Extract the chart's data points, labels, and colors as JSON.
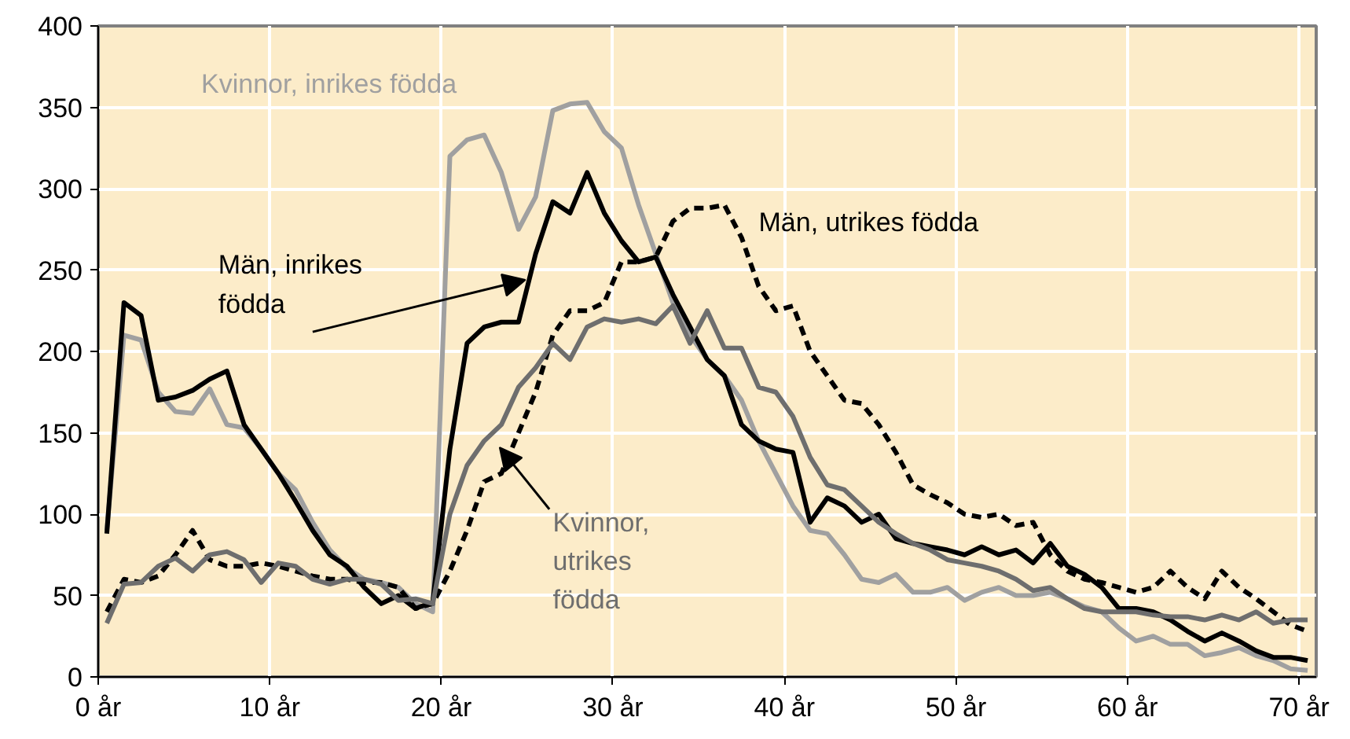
{
  "chart_data": {
    "type": "line",
    "x": [
      0.5,
      1.5,
      2.5,
      3.5,
      4.5,
      5.5,
      6.5,
      7.5,
      8.5,
      9.5,
      10.5,
      11.5,
      12.5,
      13.5,
      14.5,
      15.5,
      16.5,
      17.5,
      18.5,
      19.5,
      20.5,
      21.5,
      22.5,
      23.5,
      24.5,
      25.5,
      26.5,
      27.5,
      28.5,
      29.5,
      30.5,
      31.5,
      32.5,
      33.5,
      34.5,
      35.5,
      36.5,
      37.5,
      38.5,
      39.5,
      40.5,
      41.5,
      42.5,
      43.5,
      44.5,
      45.5,
      46.5,
      47.5,
      48.5,
      49.5,
      50.5,
      51.5,
      52.5,
      53.5,
      54.5,
      55.5,
      56.5,
      57.5,
      58.5,
      59.5,
      60.5,
      61.5,
      62.5,
      63.5,
      64.5,
      65.5,
      66.5,
      67.5,
      68.5,
      69.5,
      70.5
    ],
    "xlim": [
      0,
      71
    ],
    "xticks": [
      {
        "value": 0,
        "label": "0 år"
      },
      {
        "value": 10,
        "label": "10 år"
      },
      {
        "value": 20,
        "label": "20 år"
      },
      {
        "value": 30,
        "label": "30 år"
      },
      {
        "value": 40,
        "label": "40 år"
      },
      {
        "value": 50,
        "label": "50 år"
      },
      {
        "value": 60,
        "label": "60 år"
      },
      {
        "value": 70,
        "label": "70 år"
      }
    ],
    "ylim": [
      0,
      400
    ],
    "yticks": [
      0,
      50,
      100,
      150,
      200,
      250,
      300,
      350,
      400
    ],
    "grid": true,
    "marker": "none",
    "series": [
      {
        "name": "Kvinnor, inrikes födda",
        "color": "#a0a0a0",
        "line_style": "solid",
        "values": [
          90,
          210,
          207,
          175,
          163,
          162,
          177,
          155,
          153,
          140,
          125,
          115,
          95,
          78,
          67,
          60,
          58,
          55,
          45,
          40,
          320,
          330,
          333,
          310,
          275,
          295,
          348,
          352,
          353,
          335,
          325,
          290,
          260,
          230,
          210,
          195,
          185,
          170,
          145,
          125,
          105,
          90,
          88,
          75,
          60,
          58,
          63,
          52,
          52,
          55,
          47,
          52,
          55,
          50,
          50,
          52,
          48,
          43,
          40,
          30,
          22,
          25,
          20,
          20,
          13,
          15,
          18,
          13,
          10,
          5,
          4
        ]
      },
      {
        "name": "Män, inrikes födda",
        "color": "#000000",
        "line_style": "solid",
        "values": [
          88,
          230,
          222,
          170,
          172,
          176,
          183,
          188,
          155,
          140,
          125,
          108,
          90,
          75,
          68,
          55,
          45,
          50,
          42,
          46,
          140,
          205,
          215,
          218,
          218,
          260,
          292,
          285,
          310,
          285,
          268,
          255,
          258,
          235,
          215,
          195,
          185,
          155,
          145,
          140,
          138,
          95,
          110,
          105,
          95,
          100,
          85,
          82,
          80,
          78,
          75,
          80,
          75,
          78,
          70,
          82,
          68,
          63,
          55,
          42,
          42,
          40,
          35,
          28,
          22,
          27,
          22,
          16,
          12,
          12,
          10
        ]
      },
      {
        "name": "Män, utrikes födda",
        "color": "#000000",
        "line_style": "dashed",
        "values": [
          40,
          60,
          58,
          62,
          75,
          90,
          72,
          68,
          68,
          70,
          68,
          65,
          62,
          60,
          60,
          58,
          58,
          55,
          42,
          45,
          65,
          90,
          120,
          125,
          150,
          175,
          210,
          225,
          225,
          230,
          255,
          255,
          258,
          280,
          288,
          288,
          290,
          270,
          240,
          225,
          228,
          200,
          185,
          170,
          168,
          155,
          138,
          118,
          112,
          107,
          100,
          98,
          100,
          93,
          95,
          75,
          65,
          60,
          58,
          55,
          52,
          55,
          65,
          55,
          48,
          65,
          55,
          48,
          40,
          32,
          28
        ]
      },
      {
        "name": "Kvinnor, utrikes födda",
        "color": "#6e6e6e",
        "line_style": "solid",
        "values": [
          33,
          57,
          58,
          68,
          73,
          65,
          75,
          77,
          72,
          58,
          70,
          68,
          60,
          57,
          60,
          60,
          57,
          47,
          48,
          45,
          100,
          130,
          145,
          155,
          178,
          190,
          205,
          195,
          215,
          220,
          218,
          220,
          217,
          228,
          205,
          225,
          202,
          202,
          178,
          175,
          160,
          135,
          118,
          115,
          105,
          95,
          88,
          82,
          78,
          72,
          70,
          68,
          65,
          60,
          53,
          55,
          48,
          42,
          40,
          40,
          40,
          38,
          37,
          37,
          35,
          38,
          35,
          40,
          33,
          35,
          35
        ]
      }
    ]
  }
}
